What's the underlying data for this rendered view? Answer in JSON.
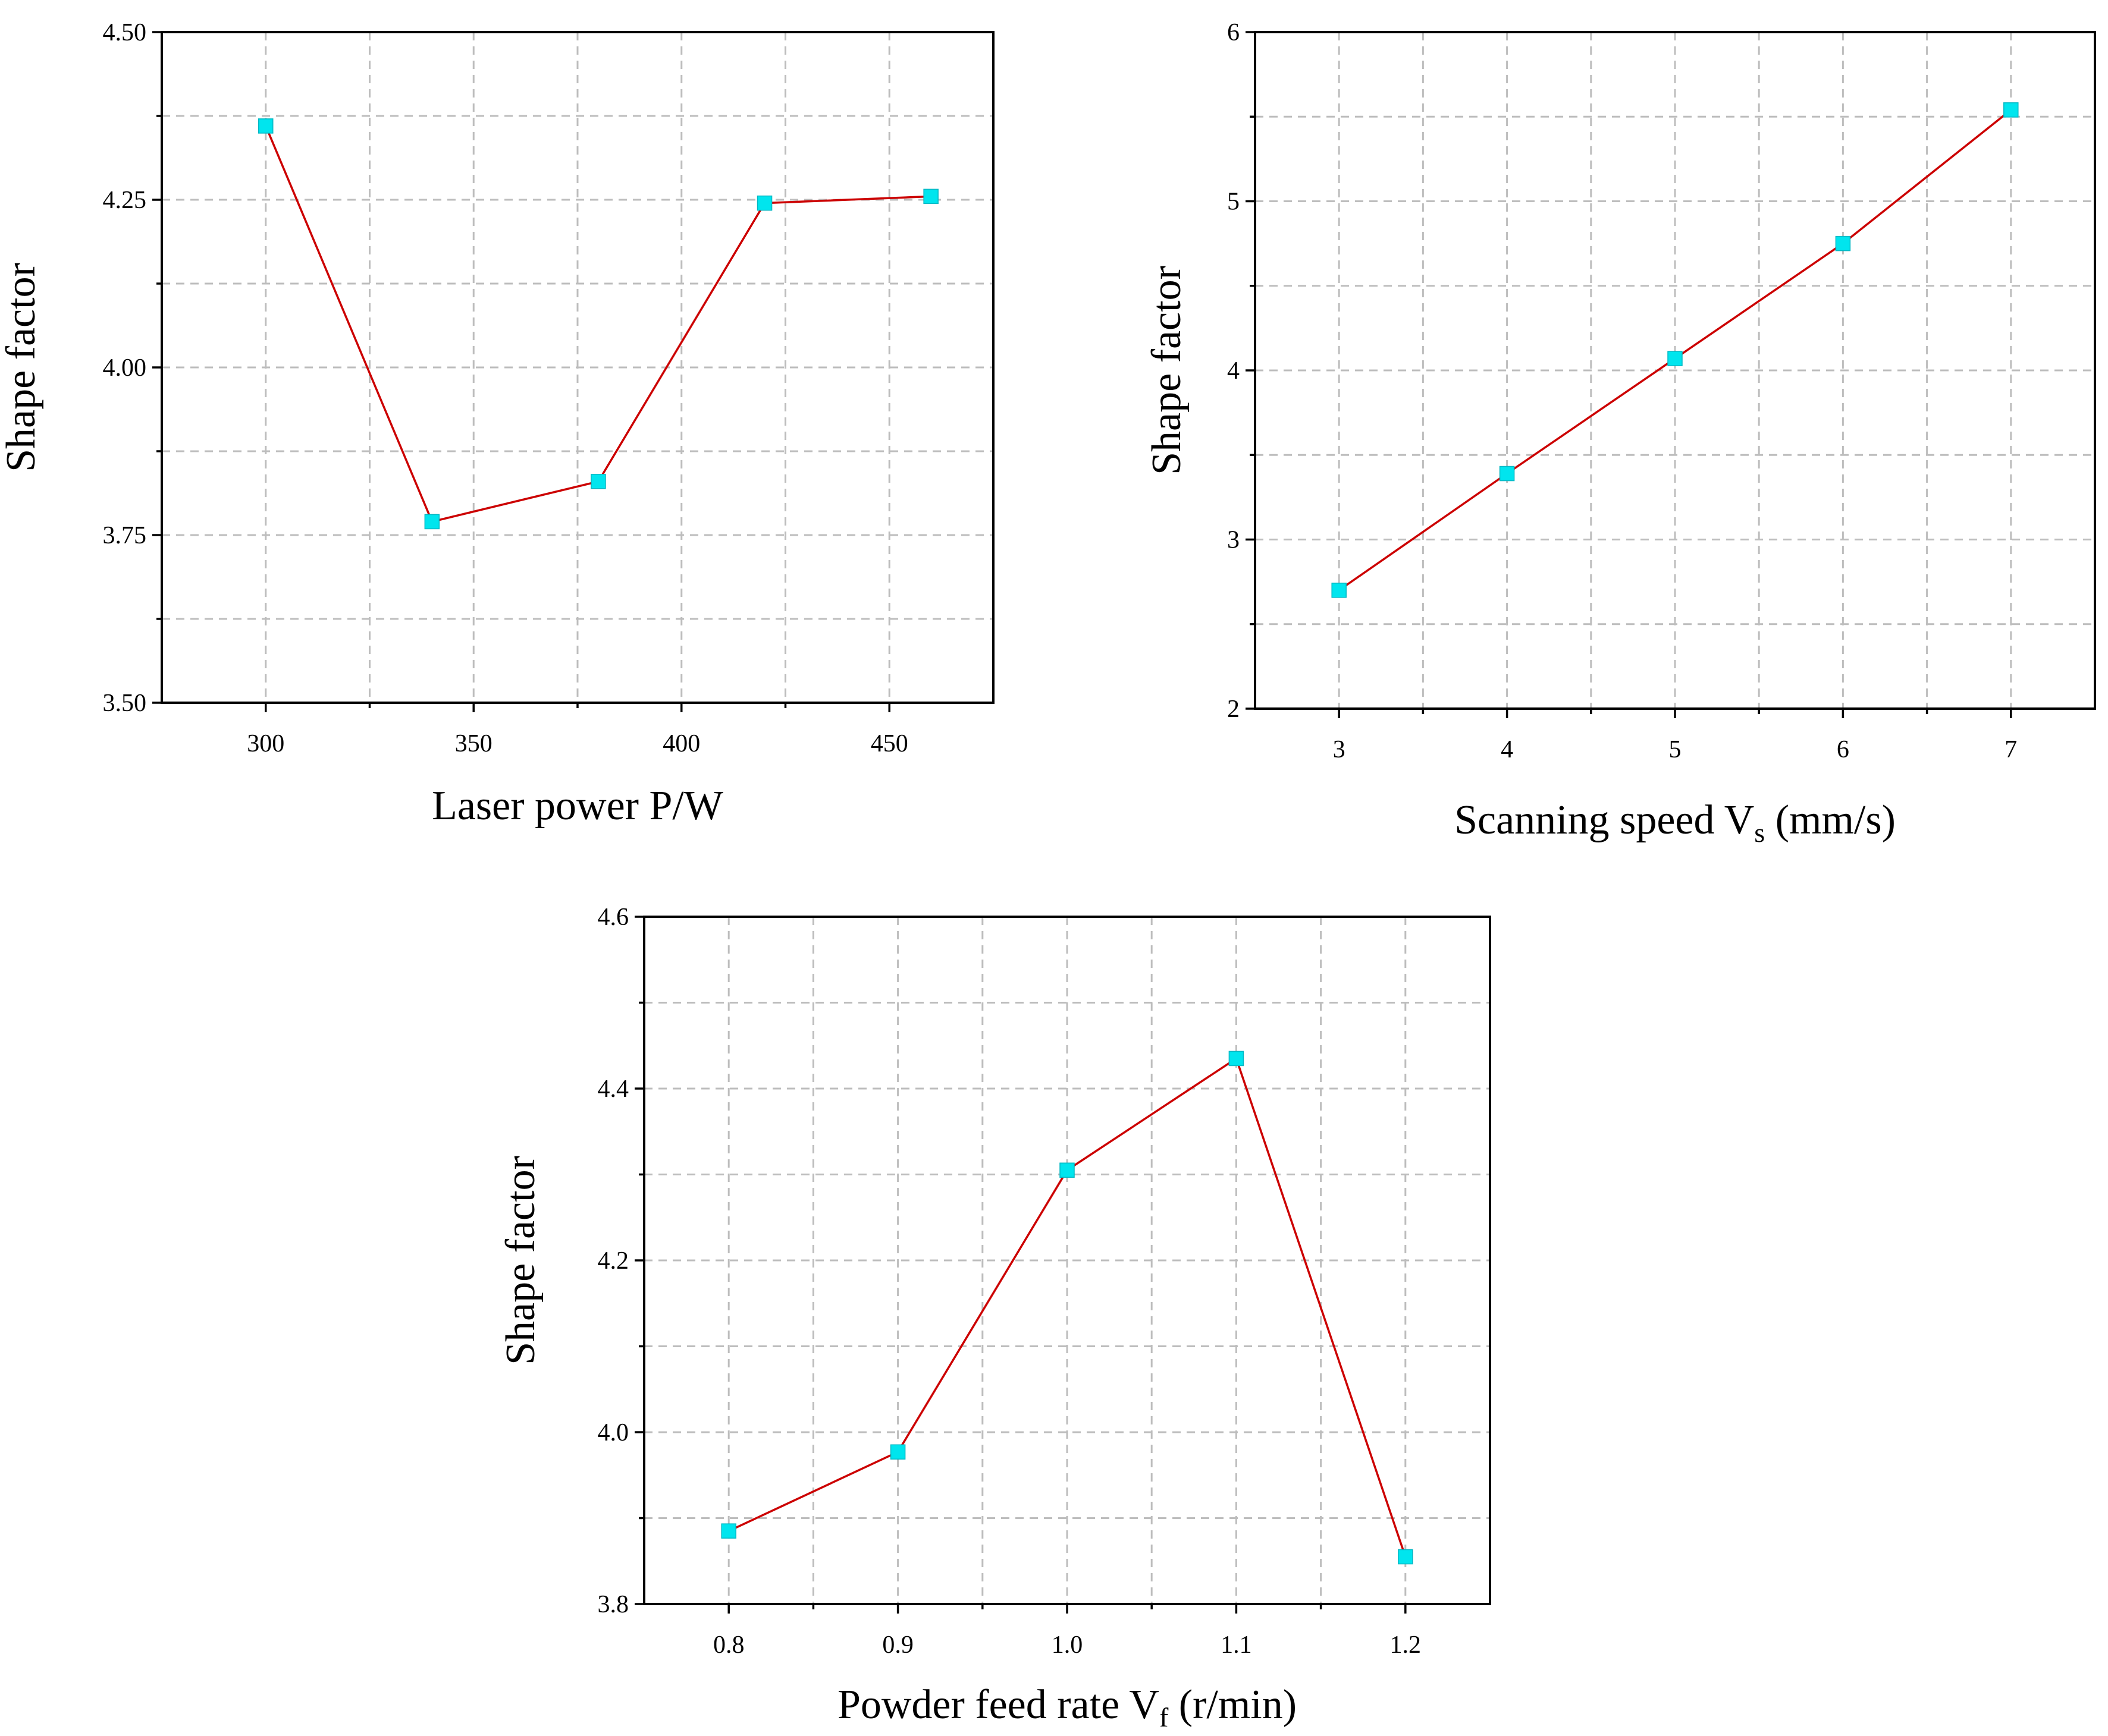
{
  "colors": {
    "line": "#cc0000",
    "marker": "#00e5ee",
    "grid": "#bdbdbd",
    "axis": "#000000"
  },
  "chart_data": [
    {
      "type": "line",
      "x": [
        300,
        340,
        380,
        420,
        460
      ],
      "values": [
        4.36,
        3.77,
        3.83,
        4.245,
        4.255
      ],
      "xlabel": {
        "main": "Laser power P/W",
        "sub": "",
        "suffix": ""
      },
      "ylabel": "Shape factor",
      "xlim": [
        275,
        475
      ],
      "ylim": [
        3.5,
        4.5
      ],
      "xticks": [
        300,
        350,
        400,
        450
      ],
      "xtick_labels": [
        "300",
        "350",
        "400",
        "450"
      ],
      "yticks": [
        3.5,
        3.75,
        4.0,
        4.25,
        4.5
      ],
      "ytick_labels": [
        "3.50",
        "3.75",
        "4.00",
        "4.25",
        "4.50"
      ],
      "grid": true
    },
    {
      "type": "line",
      "x": [
        3,
        4,
        5,
        6,
        7
      ],
      "values": [
        2.7,
        3.39,
        4.07,
        4.75,
        5.54
      ],
      "xlabel": {
        "main": "Scanning speed V",
        "sub": "s",
        "suffix": " (mm/s)"
      },
      "ylabel": "Shape factor",
      "xlim": [
        2.5,
        7.5
      ],
      "ylim": [
        2,
        6
      ],
      "xticks": [
        3,
        4,
        5,
        6,
        7
      ],
      "xtick_labels": [
        "3",
        "4",
        "5",
        "6",
        "7"
      ],
      "yticks": [
        2,
        3,
        4,
        5,
        6
      ],
      "ytick_labels": [
        "2",
        "3",
        "4",
        "5",
        "6"
      ],
      "grid": true
    },
    {
      "type": "line",
      "x": [
        0.8,
        0.9,
        1.0,
        1.1,
        1.2
      ],
      "values": [
        3.885,
        3.977,
        4.305,
        4.435,
        3.855
      ],
      "xlabel": {
        "main": "Powder feed rate V",
        "sub": "f",
        "suffix": " (r/min)"
      },
      "ylabel": "Shape factor",
      "xlim": [
        0.75,
        1.25
      ],
      "ylim": [
        3.8,
        4.6
      ],
      "xticks": [
        0.8,
        0.9,
        1.0,
        1.1,
        1.2
      ],
      "xtick_labels": [
        "0.8",
        "0.9",
        "1.0",
        "1.1",
        "1.2"
      ],
      "yticks": [
        3.8,
        4.0,
        4.2,
        4.4,
        4.6
      ],
      "ytick_labels": [
        "3.8",
        "4.0",
        "4.2",
        "4.4",
        "4.6"
      ],
      "grid": true
    }
  ]
}
